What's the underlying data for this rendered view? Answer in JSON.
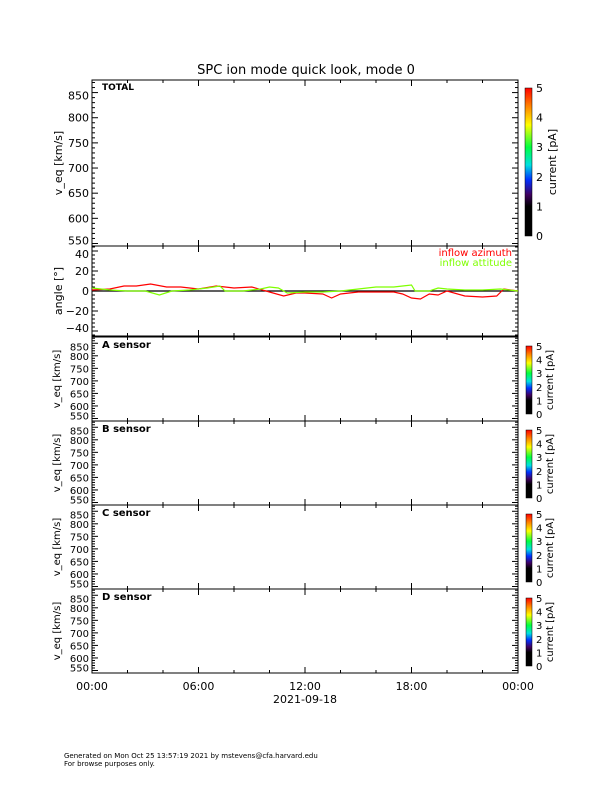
{
  "chart_data": {
    "title": "SPC ion mode quick look, mode 0",
    "type": "line",
    "x_ticks": [
      "00:00",
      "06:00",
      "12:00",
      "18:00",
      "00:00"
    ],
    "x_date_label": "2021-09-18",
    "xlim_hours": [
      0,
      24
    ],
    "panels": [
      {
        "id": "total",
        "label": "TOTAL",
        "ylabel": "v_eq [km/s]",
        "ylim": [
          545,
          875
        ],
        "yticks": [
          550,
          600,
          650,
          700,
          750,
          800,
          850
        ],
        "colorbar": {
          "label": "current [pA]",
          "range": [
            0,
            5
          ],
          "ticks": [
            0,
            1,
            2,
            3,
            4,
            5
          ]
        }
      },
      {
        "id": "angle",
        "ylabel": "angle [°]",
        "ylim": [
          -45,
          45
        ],
        "yticks": [
          -40,
          -20,
          0,
          20,
          40
        ],
        "legend_placement": "top-right",
        "series": [
          {
            "name": "inflow azimuth",
            "color": "#ff0000",
            "x": [
              0,
              1,
              1.8,
              2.5,
              3.3,
              4.2,
              5,
              6,
              7,
              8,
              9,
              10,
              10.8,
              11.5,
              12,
              13,
              13.5,
              14,
              15,
              16,
              17,
              17.5,
              18,
              18.5,
              19,
              19.5,
              20,
              21,
              22,
              22.8,
              23.2,
              24
            ],
            "y": [
              1,
              2,
              5,
              5,
              7,
              4,
              4,
              2,
              5,
              3,
              4,
              -1,
              -5,
              -2,
              -2,
              -3,
              -7,
              -3,
              -1,
              -1,
              -1,
              -3,
              -7,
              -8,
              -3,
              -4,
              0,
              -5,
              -6,
              -5,
              2,
              0
            ]
          },
          {
            "name": "inflow attitude",
            "color": "#7fff00",
            "x": [
              0,
              1,
              2,
              3,
              3.8,
              4.5,
              5.5,
              6.5,
              7.2,
              7.5,
              8.5,
              9.5,
              10,
              10.5,
              11,
              12,
              13,
              14,
              15,
              16,
              17,
              17.5,
              18,
              18.2,
              19,
              19.5,
              20,
              21,
              22,
              23,
              24
            ],
            "y": [
              3,
              1,
              0,
              0,
              -4,
              0,
              1,
              3,
              5,
              0,
              0,
              2,
              4,
              3,
              -2,
              -1,
              -1,
              0,
              2,
              4,
              4,
              5,
              6,
              0,
              0,
              3,
              2,
              1,
              1,
              2,
              0
            ]
          }
        ]
      },
      {
        "id": "a",
        "label": "A sensor",
        "ylabel": "v_eq [km/s]",
        "ylim": [
          540,
          875
        ],
        "yticks": [
          550,
          600,
          650,
          700,
          750,
          800,
          850
        ],
        "colorbar": {
          "label": "current [pA]",
          "range": [
            0,
            5
          ],
          "ticks": [
            0,
            1,
            2,
            3,
            4,
            5
          ]
        }
      },
      {
        "id": "b",
        "label": "B sensor",
        "ylabel": "v_eq [km/s]",
        "ylim": [
          540,
          875
        ],
        "yticks": [
          550,
          600,
          650,
          700,
          750,
          800,
          850
        ],
        "colorbar": {
          "label": "current [pA]",
          "range": [
            0,
            5
          ],
          "ticks": [
            0,
            1,
            2,
            3,
            4,
            5
          ]
        }
      },
      {
        "id": "c",
        "label": "C sensor",
        "ylabel": "v_eq [km/s]",
        "ylim": [
          540,
          875
        ],
        "yticks": [
          550,
          600,
          650,
          700,
          750,
          800,
          850
        ],
        "colorbar": {
          "label": "current [pA]",
          "range": [
            0,
            5
          ],
          "ticks": [
            0,
            1,
            2,
            3,
            4,
            5
          ]
        }
      },
      {
        "id": "d",
        "label": "D sensor",
        "ylabel": "v_eq [km/s]",
        "ylim": [
          540,
          875
        ],
        "yticks": [
          550,
          600,
          650,
          700,
          750,
          800,
          850
        ],
        "colorbar": {
          "label": "current [pA]",
          "range": [
            0,
            5
          ],
          "ticks": [
            0,
            1,
            2,
            3,
            4,
            5
          ]
        }
      }
    ]
  },
  "footer": {
    "line1": "Generated on Mon Oct 25 13:57:19 2021 by mstevens@cfa.harvard.edu",
    "line2": "For browse purposes only."
  }
}
